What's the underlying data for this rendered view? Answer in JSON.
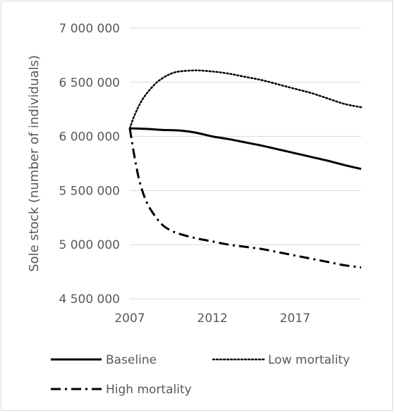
{
  "chart_data": {
    "type": "line",
    "title": "",
    "xlabel": "",
    "ylabel": "Sole stock (number of individuals)",
    "xlim": [
      2007,
      2021
    ],
    "ylim": [
      4500000,
      7000000
    ],
    "x_ticks": [
      2007,
      2012,
      2017
    ],
    "x_tick_labels": [
      "2007",
      "2012",
      "2017"
    ],
    "y_ticks": [
      4500000,
      5000000,
      5500000,
      6000000,
      6500000,
      7000000
    ],
    "y_tick_labels": [
      "4 500 000",
      "5 000 000",
      "5 500 000",
      "6 000 000",
      "6 500 000",
      "7 000 000"
    ],
    "grid": "horizontal",
    "legend_position": "bottom",
    "series": [
      {
        "name": "Baseline",
        "style": "solid",
        "x": [
          2007,
          2008,
          2009,
          2010,
          2011,
          2012,
          2013,
          2014,
          2015,
          2016,
          2017,
          2018,
          2019,
          2020,
          2021
        ],
        "values": [
          6075000,
          6070000,
          6060000,
          6055000,
          6035000,
          6000000,
          5975000,
          5945000,
          5915000,
          5880000,
          5845000,
          5810000,
          5775000,
          5735000,
          5700000
        ]
      },
      {
        "name": "Low mortality",
        "style": "dotted",
        "x": [
          2007,
          2007.3,
          2007.8,
          2008.5,
          2009,
          2009.5,
          2010,
          2011,
          2012,
          2013,
          2014,
          2015,
          2016,
          2017,
          2018,
          2019,
          2020,
          2021
        ],
        "values": [
          6075000,
          6200000,
          6350000,
          6480000,
          6540000,
          6580000,
          6600000,
          6610000,
          6600000,
          6580000,
          6550000,
          6520000,
          6480000,
          6440000,
          6400000,
          6350000,
          6300000,
          6270000
        ]
      },
      {
        "name": "High mortality",
        "style": "dash-dot",
        "x": [
          2007,
          2007.3,
          2007.6,
          2008,
          2008.5,
          2009,
          2009.5,
          2010,
          2011,
          2012,
          2013,
          2014,
          2015,
          2016,
          2017,
          2018,
          2019,
          2020,
          2021
        ],
        "values": [
          6075000,
          5800000,
          5580000,
          5400000,
          5270000,
          5180000,
          5130000,
          5100000,
          5060000,
          5030000,
          5000000,
          4980000,
          4960000,
          4930000,
          4900000,
          4870000,
          4840000,
          4810000,
          4790000
        ]
      }
    ]
  },
  "colors": {
    "line": "#000000",
    "grid": "#d9d9d9",
    "text": "#595959"
  }
}
